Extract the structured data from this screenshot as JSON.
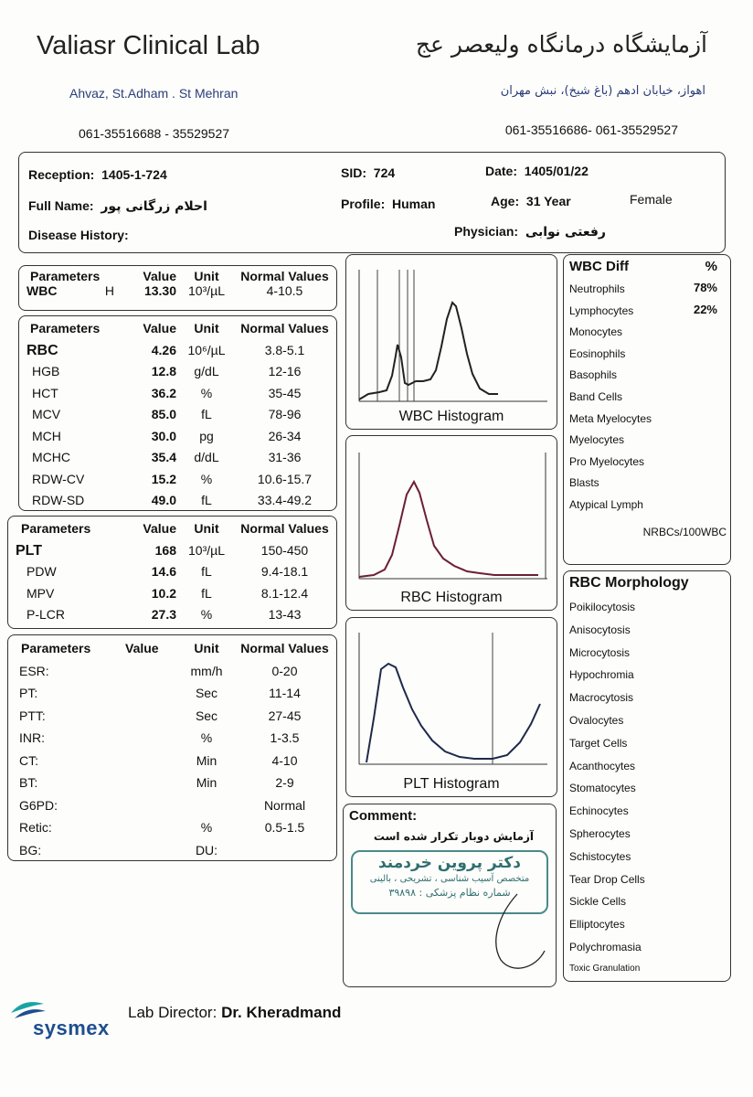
{
  "header": {
    "lab_name_en": "Valiasr Clinical Lab",
    "address_en": "Ahvaz, St.Adham . St Mehran",
    "phone_en": "061-35516688 - 35529527",
    "lab_name_fa": "آزمایشگاه درمانگاه ولیعصر عج",
    "address_fa": "اهواز، خیابان ادهم (باغ شیخ)، نبش مهران",
    "phone_fa": "061-35516686- 061-35529527"
  },
  "patient": {
    "reception_label": "Reception:",
    "reception": "1405-1-724",
    "sid_label": "SID:",
    "sid": "724",
    "date_label": "Date:",
    "date": "1405/01/22",
    "name_label": "Full Name:",
    "name": "احلام زرگانی پور",
    "profile_label": "Profile:",
    "profile": "Human",
    "age_label": "Age:",
    "age": "31 Year",
    "gender": "Female",
    "disease_label": "Disease History:",
    "physician_label": "Physician:",
    "physician": "رفعتی نوابی"
  },
  "headers": {
    "param": "Parameters",
    "value": "Value",
    "unit": "Unit",
    "normal": "Normal Values"
  },
  "wbc": {
    "name": "WBC",
    "flag": "H",
    "value": "13.30",
    "unit": "10³/µL",
    "normal": "4-10.5"
  },
  "rbc_rows": [
    {
      "name": "RBC",
      "value": "4.26",
      "unit": "10⁶/µL",
      "normal": "3.8-5.1"
    },
    {
      "name": "HGB",
      "value": "12.8",
      "unit": "g/dL",
      "normal": "12-16"
    },
    {
      "name": "HCT",
      "value": "36.2",
      "unit": "%",
      "normal": "35-45"
    },
    {
      "name": "MCV",
      "value": "85.0",
      "unit": "fL",
      "normal": "78-96"
    },
    {
      "name": "MCH",
      "value": "30.0",
      "unit": "pg",
      "normal": "26-34"
    },
    {
      "name": "MCHC",
      "value": "35.4",
      "unit": "d/dL",
      "normal": "31-36"
    },
    {
      "name": "RDW-CV",
      "value": "15.2",
      "unit": "%",
      "normal": "10.6-15.7"
    },
    {
      "name": "RDW-SD",
      "value": "49.0",
      "unit": "fL",
      "normal": "33.4-49.2"
    }
  ],
  "plt_rows": [
    {
      "name": "PLT",
      "value": "168",
      "unit": "10³/µL",
      "normal": "150-450"
    },
    {
      "name": "PDW",
      "value": "14.6",
      "unit": "fL",
      "normal": "9.4-18.1"
    },
    {
      "name": "MPV",
      "value": "10.2",
      "unit": "fL",
      "normal": "8.1-12.4"
    },
    {
      "name": "P-LCR",
      "value": "27.3",
      "unit": "%",
      "normal": "13-43"
    }
  ],
  "coag_rows": [
    {
      "name": "ESR:",
      "value": "",
      "unit": "mm/h",
      "normal": "0-20"
    },
    {
      "name": "PT:",
      "value": "",
      "unit": "Sec",
      "normal": "11-14"
    },
    {
      "name": "PTT:",
      "value": "",
      "unit": "Sec",
      "normal": "27-45"
    },
    {
      "name": "INR:",
      "value": "",
      "unit": "%",
      "normal": "1-3.5"
    },
    {
      "name": "CT:",
      "value": "",
      "unit": "Min",
      "normal": "4-10"
    },
    {
      "name": "BT:",
      "value": "",
      "unit": "Min",
      "normal": "2-9"
    },
    {
      "name": "G6PD:",
      "value": "",
      "unit": "",
      "normal": "Normal"
    },
    {
      "name": "Retic:",
      "value": "",
      "unit": "%",
      "normal": "0.5-1.5"
    },
    {
      "name": "BG:",
      "value": "",
      "unit": "DU:",
      "normal": ""
    }
  ],
  "histograms": {
    "wbc_title": "WBC Histogram",
    "rbc_title": "RBC Histogram",
    "plt_title": "PLT Histogram"
  },
  "wbc_diff": {
    "title": "WBC Diff",
    "pct_symbol": "%",
    "rows": [
      {
        "name": "Neutrophils",
        "pct": "78%"
      },
      {
        "name": "Lymphocytes",
        "pct": "22%"
      },
      {
        "name": "Monocytes",
        "pct": ""
      },
      {
        "name": "Eosinophils",
        "pct": ""
      },
      {
        "name": "Basophils",
        "pct": ""
      },
      {
        "name": "Band Cells",
        "pct": ""
      },
      {
        "name": "Meta Myelocytes",
        "pct": ""
      },
      {
        "name": "Myelocytes",
        "pct": ""
      },
      {
        "name": "Pro Myelocytes",
        "pct": ""
      },
      {
        "name": "Blasts",
        "pct": ""
      },
      {
        "name": "Atypical Lymph",
        "pct": ""
      }
    ],
    "nrbc": "NRBCs/100WBC"
  },
  "rbc_morph": {
    "title": "RBC Morphology",
    "rows": [
      "Poikilocytosis",
      "Anisocytosis",
      "Microcytosis",
      "Hypochromia",
      "Macrocytosis",
      "Ovalocytes",
      "Target Cells",
      "Acanthocytes",
      "Stomatocytes",
      "Echinocytes",
      "Spherocytes",
      "Schistocytes",
      "Tear Drop Cells",
      "Sickle Cells",
      "Elliptocytes",
      "Polychromasia",
      "Toxic Granulation"
    ]
  },
  "comment": {
    "label": "Comment:",
    "text": "آزمایش دوبار تکرار شده است",
    "stamp_name": "دکتر پروین خردمند",
    "stamp_spec": "متخصص آسیب شناسی ، تشریحی ، بالینی",
    "stamp_reg": "شماره نظام پزشکی :  ۳۹۸۹۸"
  },
  "footer": {
    "director_label": "Lab Director:",
    "director": "Dr. Kheradmand",
    "brand": "sysmex"
  }
}
